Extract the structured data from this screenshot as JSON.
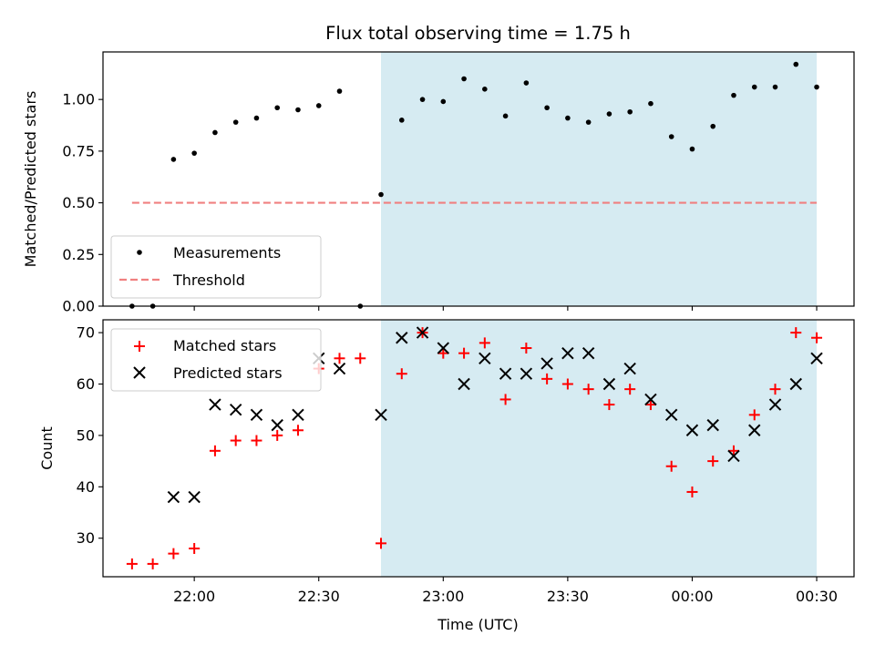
{
  "chart_data": [
    {
      "type": "scatter",
      "title": "Flux total observing time = 1.75 h",
      "xlabel": "",
      "ylabel": "Matched/Predicted stars",
      "ylim": [
        0,
        1.23
      ],
      "yticks": [
        "0.00",
        "0.25",
        "0.50",
        "0.75",
        "1.00"
      ],
      "grid": false,
      "legend_position": "lower-left",
      "shaded_region": {
        "from": "22:45",
        "to": "00:30",
        "color": "#add8e6"
      },
      "series": [
        {
          "name": "Measurements",
          "marker": "dot",
          "color": "#000000",
          "x": [
            "21:45",
            "21:50",
            "21:55",
            "22:00",
            "22:05",
            "22:10",
            "22:15",
            "22:20",
            "22:25",
            "22:30",
            "22:35",
            "22:40",
            "22:45",
            "22:50",
            "22:55",
            "23:00",
            "23:05",
            "23:10",
            "23:15",
            "23:20",
            "23:25",
            "23:30",
            "23:35",
            "23:40",
            "23:45",
            "23:50",
            "23:55",
            "00:00",
            "00:05",
            "00:10",
            "00:15",
            "00:20",
            "00:25",
            "00:30"
          ],
          "values": [
            0,
            0,
            0.71,
            0.74,
            0.84,
            0.89,
            0.91,
            0.96,
            0.95,
            0.97,
            1.04,
            0,
            0.54,
            0.9,
            1.0,
            0.99,
            1.1,
            1.05,
            0.92,
            1.08,
            0.96,
            0.91,
            0.89,
            0.93,
            0.94,
            0.98,
            0.82,
            0.76,
            0.87,
            1.02,
            1.06,
            1.06,
            1.17,
            1.06
          ]
        },
        {
          "name": "Threshold",
          "style": "dashed",
          "color": "#f08080",
          "x": [
            "21:45",
            "00:30"
          ],
          "values": [
            0.5,
            0.5
          ]
        }
      ]
    },
    {
      "type": "scatter",
      "title": "",
      "xlabel": "Time (UTC)",
      "ylabel": "Count",
      "ylim": [
        22.5,
        72.5
      ],
      "yticks": [
        "30",
        "40",
        "50",
        "60",
        "70"
      ],
      "xticks": [
        "22:00",
        "22:30",
        "23:00",
        "23:30",
        "00:00",
        "00:30"
      ],
      "xlim": [
        "21:38",
        "00:39"
      ],
      "grid": false,
      "legend_position": "upper-left",
      "shaded_region": {
        "from": "22:45",
        "to": "00:30",
        "color": "#add8e6"
      },
      "series": [
        {
          "name": "Matched stars",
          "marker": "plus",
          "color": "#ff0000",
          "x": [
            "21:45",
            "21:50",
            "21:55",
            "22:00",
            "22:05",
            "22:10",
            "22:15",
            "22:20",
            "22:25",
            "22:30",
            "22:35",
            "22:40",
            "22:45",
            "22:50",
            "22:55",
            "23:00",
            "23:05",
            "23:10",
            "23:15",
            "23:20",
            "23:25",
            "23:30",
            "23:35",
            "23:40",
            "23:45",
            "23:50",
            "23:55",
            "00:00",
            "00:05",
            "00:10",
            "00:15",
            "00:20",
            "00:25",
            "00:30"
          ],
          "values": [
            25,
            25,
            27,
            28,
            47,
            49,
            49,
            50,
            51,
            63,
            65,
            65,
            29,
            62,
            70,
            66,
            66,
            68,
            57,
            67,
            61,
            60,
            59,
            56,
            59,
            56,
            44,
            39,
            45,
            47,
            54,
            59,
            70,
            69
          ]
        },
        {
          "name": "Predicted stars",
          "marker": "x",
          "color": "#000000",
          "x": [
            "21:55",
            "22:00",
            "22:05",
            "22:10",
            "22:15",
            "22:20",
            "22:25",
            "22:30",
            "22:35",
            "22:45",
            "22:50",
            "22:55",
            "23:00",
            "23:05",
            "23:10",
            "23:15",
            "23:20",
            "23:25",
            "23:30",
            "23:35",
            "23:40",
            "23:45",
            "23:50",
            "23:55",
            "00:00",
            "00:05",
            "00:10",
            "00:15",
            "00:20",
            "00:25",
            "00:30"
          ],
          "values": [
            38,
            38,
            56,
            55,
            54,
            52,
            54,
            65,
            63,
            54,
            69,
            70,
            67,
            60,
            65,
            62,
            62,
            64,
            66,
            66,
            60,
            63,
            57,
            54,
            51,
            52,
            46,
            51,
            56,
            60,
            65
          ]
        }
      ]
    }
  ]
}
